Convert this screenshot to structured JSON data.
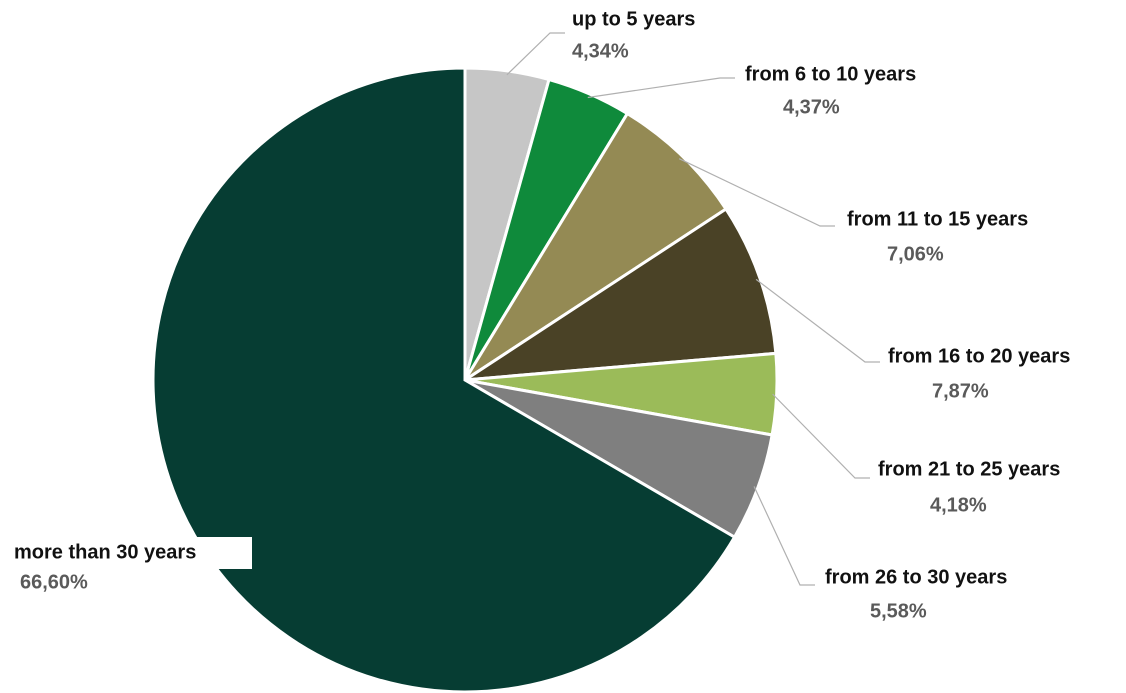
{
  "chart_data": {
    "type": "pie",
    "categories": [
      "up to 5 years",
      "from 6 to 10 years",
      "from 11 to 15 years",
      "from 16 to 20 years",
      "from 21 to 25 years",
      "from 26 to 30 years",
      "more than 30 years"
    ],
    "values": [
      4.34,
      4.37,
      7.06,
      7.87,
      4.18,
      5.58,
      66.6
    ],
    "value_labels": [
      "4,34%",
      "4,37%",
      "7,06%",
      "7,87%",
      "4,18%",
      "5,58%",
      "66,60%"
    ],
    "colors": [
      "#c6c6c6",
      "#0f8a3b",
      "#948a54",
      "#4a4226",
      "#9bbb59",
      "#7f7f7f",
      "#063d33"
    ]
  }
}
